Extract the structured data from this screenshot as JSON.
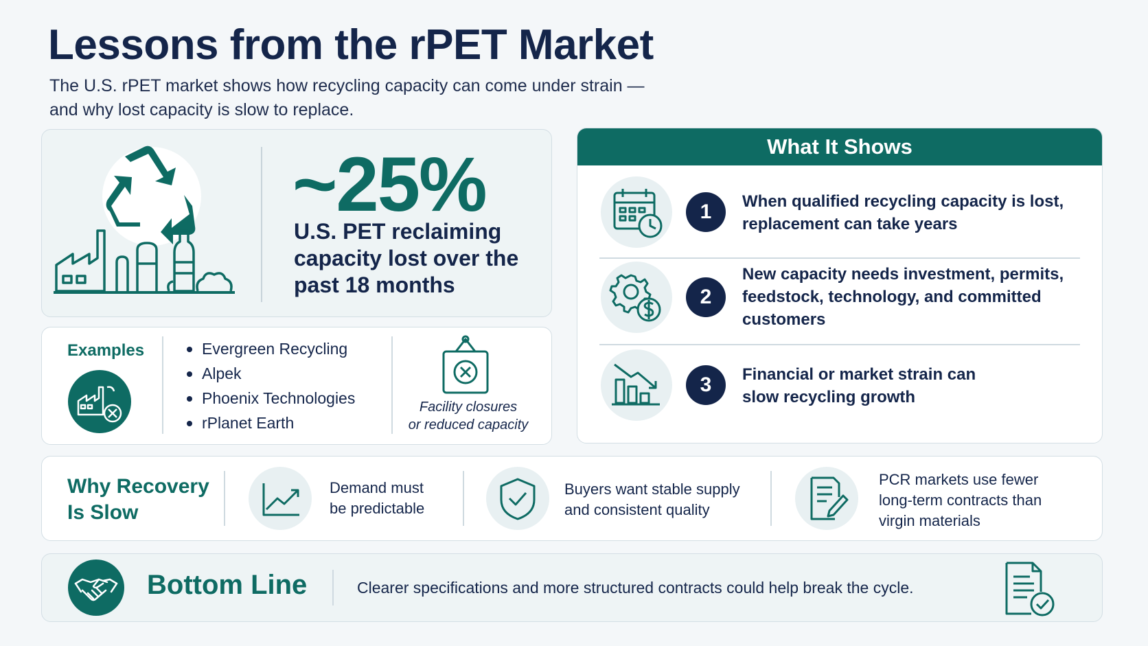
{
  "header": {
    "title": "Lessons from the rPET Market",
    "subtitle_line1": "The U.S. rPET market shows how recycling capacity can come under strain —",
    "subtitle_line2": "and why lost capacity is slow to replace."
  },
  "stat": {
    "value": "~25%",
    "description": "U.S. PET reclaiming capacity lost over the past 18 months"
  },
  "examples": {
    "label": "Examples",
    "items": [
      "Evergreen Recycling",
      "Alpek",
      "Phoenix Technologies",
      "rPlanet Earth"
    ],
    "closure_line1": "Facility closures",
    "closure_line2": "or reduced capacity"
  },
  "what_it_shows": {
    "header": "What It Shows",
    "items": [
      {
        "number": "1",
        "text": "When qualified recycling capacity is lost, replacement can take years",
        "icon": "calendar-clock-icon"
      },
      {
        "number": "2",
        "text": "New capacity needs investment, permits, feedstock, technology, and committed customers",
        "icon": "gear-dollar-icon"
      },
      {
        "number": "3",
        "text": "Financial or market strain can slow recycling growth",
        "icon": "declining-chart-icon"
      }
    ]
  },
  "why_recovery": {
    "label_line1": "Why Recovery",
    "label_line2": "Is Slow",
    "reasons": [
      {
        "line1": "Demand must",
        "line2": "be predictable",
        "line3": "",
        "icon": "trend-up-chart-icon"
      },
      {
        "line1": "Buyers want stable supply",
        "line2": "and consistent quality",
        "line3": "",
        "icon": "shield-check-icon"
      },
      {
        "line1": "PCR markets use fewer",
        "line2": "long-term contracts than",
        "line3": "virgin materials",
        "icon": "contract-pen-icon"
      }
    ]
  },
  "bottom_line": {
    "label": "Bottom Line",
    "text": "Clearer specifications and more structured contracts could help break the cycle.",
    "icon": "handshake-icon"
  },
  "colors": {
    "teal": "#0e6b63",
    "navy": "#14254a",
    "tint": "#eef4f5"
  }
}
